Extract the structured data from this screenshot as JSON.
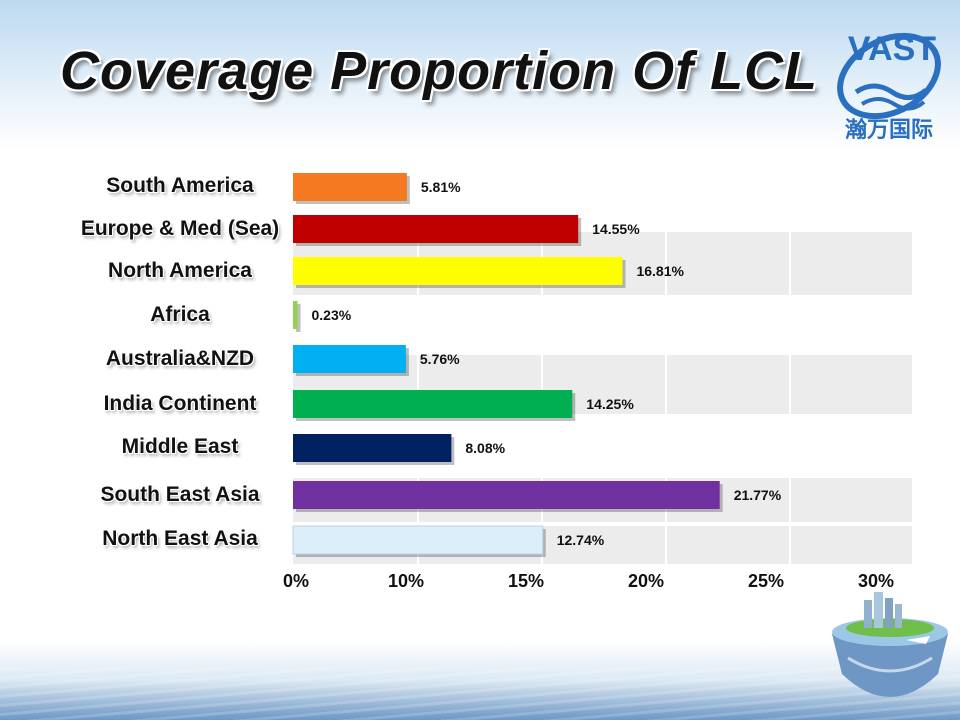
{
  "title": "Coverage Proportion Of LCL",
  "logo": {
    "brand": "VAST",
    "chinese": "瀚万国际"
  },
  "chart_data": {
    "type": "bar",
    "orientation": "horizontal",
    "categories": [
      "South America",
      "Europe & Med (Sea)",
      "North America",
      "Africa",
      "Australia&NZD",
      "India Continent",
      "Middle East",
      "South East Asia",
      "North East Asia"
    ],
    "values": [
      5.81,
      14.55,
      16.81,
      0.23,
      5.76,
      14.25,
      8.08,
      21.77,
      12.74
    ],
    "value_labels": [
      "5.81%",
      "14.55%",
      "16.81%",
      "0.23%",
      "5.76%",
      "14.25%",
      "8.08%",
      "21.77%",
      "12.74%"
    ],
    "colors": [
      "#f47920",
      "#c00000",
      "#ffff00",
      "#92d050",
      "#00b0f0",
      "#00b050",
      "#002060",
      "#7030a0",
      "#dceefa"
    ],
    "x_ticks": [
      "0%",
      "10%",
      "15%",
      "20%",
      "25%",
      "30%"
    ],
    "grid": true,
    "legend": false
  }
}
